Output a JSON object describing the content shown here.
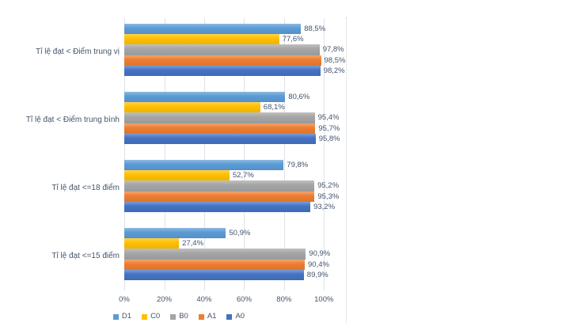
{
  "colors": {
    "background": "#ffffff",
    "text": "#44546A",
    "gridline": "#dde2e8",
    "chart_border": "#ccd3da"
  },
  "chart_data": {
    "type": "bar",
    "orientation": "horizontal",
    "title": "",
    "xlabel": "",
    "ylabel": "",
    "grid": true,
    "legend_position": "bottom",
    "categories": [
      "Tỉ lệ đạt < Điểm trung vị",
      "Tỉ lệ đạt < Điểm trung bình",
      "Tỉ lệ đạt <=18 điểm",
      "Tỉ lệ đạt <=15 điểm"
    ],
    "series": [
      {
        "name": "D1",
        "color": "#5B9BD5",
        "values": [
          88.5,
          80.6,
          79.8,
          50.9
        ],
        "labels": [
          "88,5%",
          "80,6%",
          "79,8%",
          "50,9%"
        ]
      },
      {
        "name": "C0",
        "color": "#FFC000",
        "values": [
          77.6,
          68.1,
          52.7,
          27.4
        ],
        "labels": [
          "77,6%",
          "68,1%",
          "52,7%",
          "27,4%"
        ]
      },
      {
        "name": "B0",
        "color": "#A5A5A5",
        "values": [
          97.8,
          95.4,
          95.2,
          90.9
        ],
        "labels": [
          "97,8%",
          "95,4%",
          "95,2%",
          "90,9%"
        ]
      },
      {
        "name": "A1",
        "color": "#ED7D31",
        "values": [
          98.5,
          95.7,
          95.3,
          90.4
        ],
        "labels": [
          "98,5%",
          "95,7%",
          "95,3%",
          "90,4%"
        ]
      },
      {
        "name": "A0",
        "color": "#4472C4",
        "values": [
          98.2,
          95.8,
          93.2,
          89.9
        ],
        "labels": [
          "98,2%",
          "95,8%",
          "93,2%",
          "89,9%"
        ]
      }
    ],
    "x_axis": {
      "ticks": [
        "0%",
        "20%",
        "40%",
        "60%",
        "80%",
        "100%"
      ],
      "tick_step": 20,
      "max": 111
    },
    "legend": [
      "D1",
      "C0",
      "B0",
      "A1",
      "A0"
    ]
  }
}
